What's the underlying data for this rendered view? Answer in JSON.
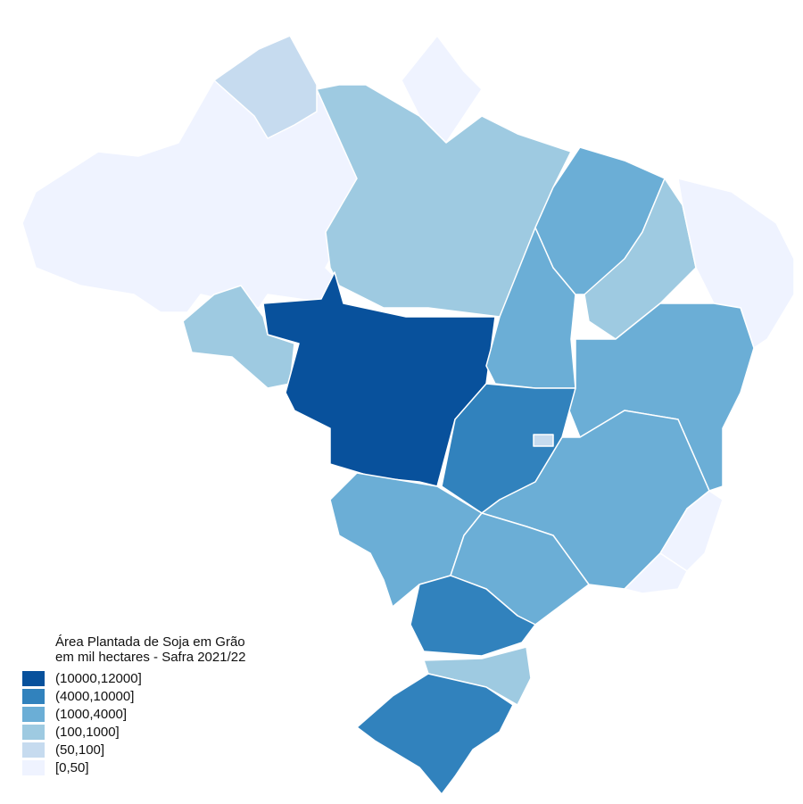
{
  "legend": {
    "title_lines": [
      "Área Plantada de Soja em Grão",
      "em mil hectares - Safra 2021/22"
    ],
    "items": [
      {
        "label": "(10000,12000]",
        "color": "#08519c"
      },
      {
        "label": "(4000,10000]",
        "color": "#3182bd"
      },
      {
        "label": "(1000,4000]",
        "color": "#6baed6"
      },
      {
        "label": "(100,1000]",
        "color": "#9ecae1"
      },
      {
        "label": "(50,100]",
        "color": "#c6dbef"
      },
      {
        "label": "[0,50]",
        "color": "#eff3ff"
      }
    ]
  }
}
